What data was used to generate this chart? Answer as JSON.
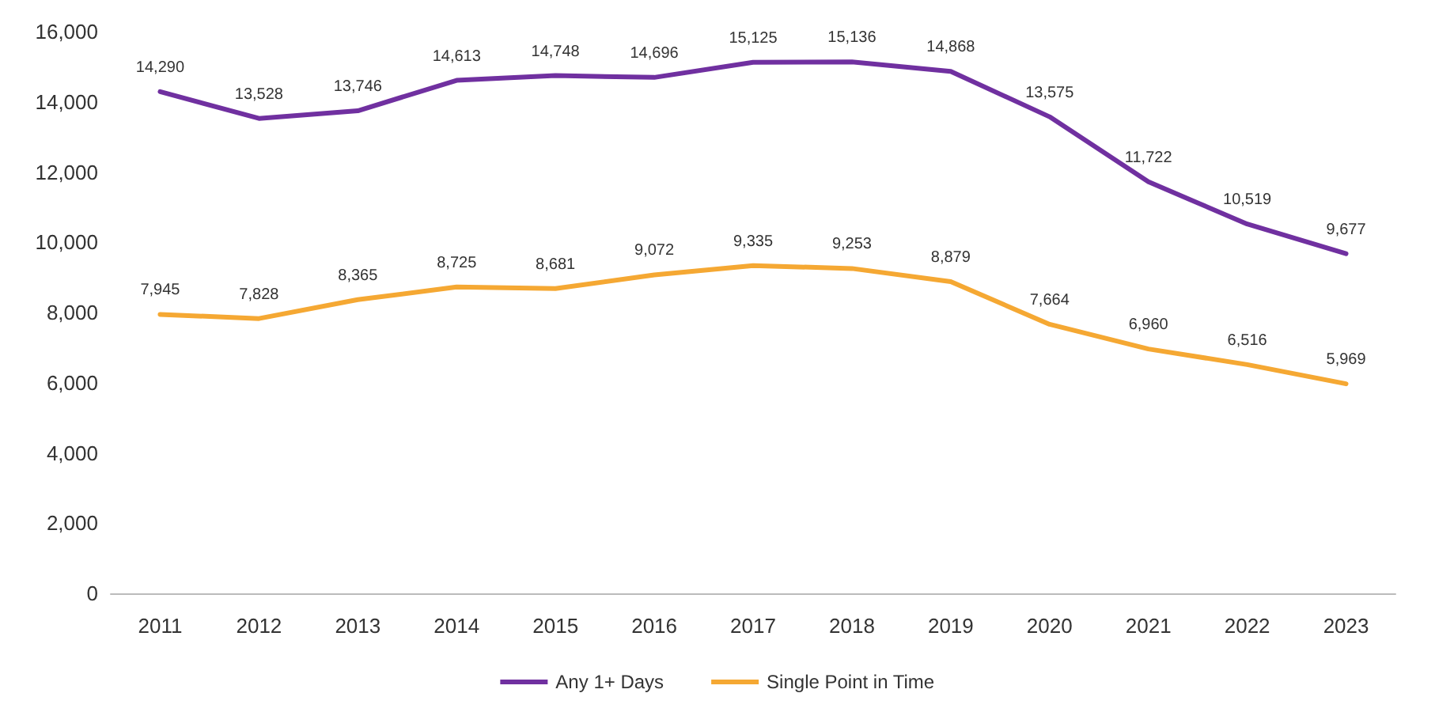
{
  "chart_data": {
    "type": "line",
    "categories": [
      "2011",
      "2012",
      "2013",
      "2014",
      "2015",
      "2016",
      "2017",
      "2018",
      "2019",
      "2020",
      "2021",
      "2022",
      "2023"
    ],
    "series": [
      {
        "name": "Any 1+ Days",
        "color": "#7030a0",
        "values": [
          14290,
          13528,
          13746,
          14613,
          14748,
          14696,
          15125,
          15136,
          14868,
          13575,
          11722,
          10519,
          9677
        ],
        "value_labels": [
          "14,290",
          "13,528",
          "13,746",
          "14,613",
          "14,748",
          "14,696",
          "15,125",
          "15,136",
          "14,868",
          "13,575",
          "11,722",
          "10,519",
          "9,677"
        ]
      },
      {
        "name": "Single Point in Time",
        "color": "#f5a833",
        "values": [
          7945,
          7828,
          8365,
          8725,
          8681,
          9072,
          9335,
          9253,
          8879,
          7664,
          6960,
          6516,
          5969
        ],
        "value_labels": [
          "7,945",
          "7,828",
          "8,365",
          "8,725",
          "8,681",
          "9,072",
          "9,335",
          "9,253",
          "8,879",
          "7,664",
          "6,960",
          "6,516",
          "5,969"
        ]
      }
    ],
    "ylim": [
      0,
      16000
    ],
    "yticks": [
      0,
      {
        "value": 2000,
        "label": "2,000"
      },
      {
        "value": 4000,
        "label": "4,000"
      },
      {
        "value": 6000,
        "label": "6,000"
      },
      {
        "value": 8000,
        "label": "8,000"
      },
      {
        "value": 10000,
        "label": "10,000"
      },
      {
        "value": 12000,
        "label": "12,000"
      },
      {
        "value": 14000,
        "label": "14,000"
      },
      {
        "value": 16000,
        "label": "16,000"
      }
    ],
    "grid": false,
    "legend": "bottom",
    "marker": "none",
    "line_style": "solid"
  }
}
